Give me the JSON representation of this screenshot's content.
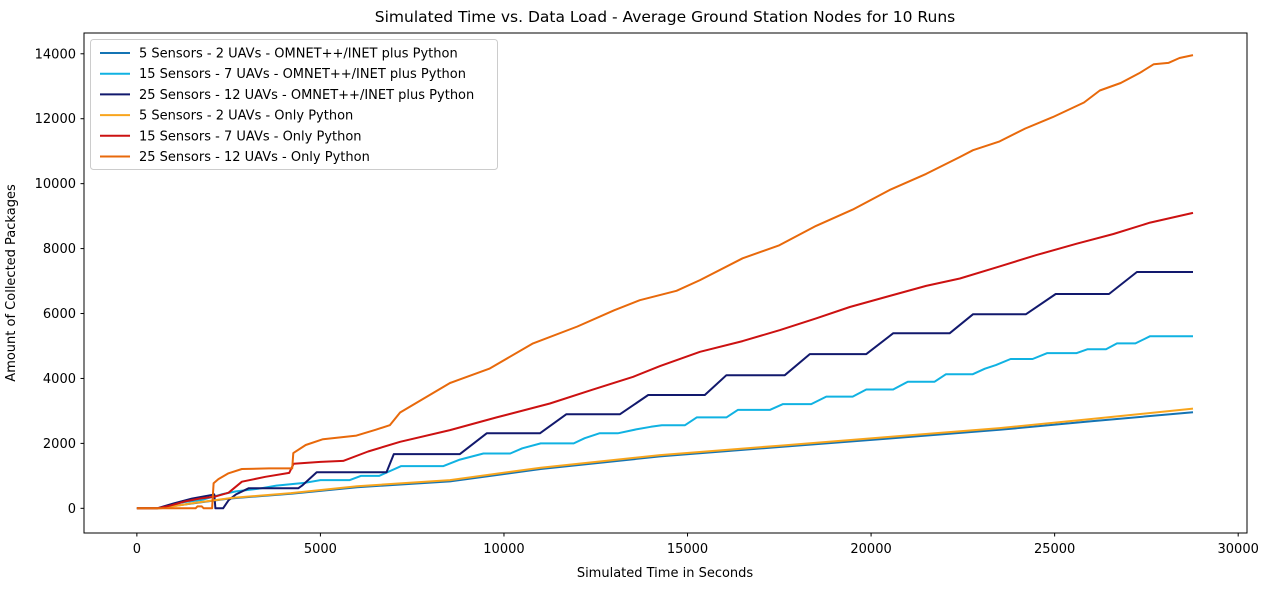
{
  "figure": {
    "title": "Simulated Time vs. Data Load - Average Ground Station Nodes for 10 Runs",
    "xlabel": "Simulated Time in Seconds",
    "ylabel": "Amount of Collected Packages"
  },
  "chart_data": {
    "type": "line",
    "title": "Simulated Time vs. Data Load - Average Ground Station Nodes for 10 Runs",
    "xlabel": "Simulated Time in Seconds",
    "ylabel": "Amount of Collected Packages",
    "grid": false,
    "legend_position": "upper left",
    "xlim": [
      -1440,
      30240
    ],
    "ylim": [
      -760,
      14640
    ],
    "x_ticks": [
      0,
      5000,
      10000,
      15000,
      20000,
      25000,
      30000
    ],
    "y_ticks": [
      0,
      2000,
      4000,
      6000,
      8000,
      10000,
      12000,
      14000
    ],
    "series": [
      {
        "name": "5 Sensors - 2 UAVs - OMNET++/INET plus Python",
        "color": "#1474b4",
        "points": [
          [
            0,
            0
          ],
          [
            550,
            0
          ],
          [
            1500,
            150
          ],
          [
            2500,
            300
          ],
          [
            4200,
            450
          ],
          [
            6000,
            650
          ],
          [
            8530,
            830
          ],
          [
            11000,
            1210
          ],
          [
            14250,
            1600
          ],
          [
            17500,
            1890
          ],
          [
            20500,
            2150
          ],
          [
            23500,
            2420
          ],
          [
            26000,
            2680
          ],
          [
            28770,
            2960
          ]
        ]
      },
      {
        "name": "15 Sensors - 7 UAVs - OMNET++/INET plus Python",
        "color": "#10b2e2",
        "points": [
          [
            0,
            0
          ],
          [
            600,
            0
          ],
          [
            1200,
            180
          ],
          [
            1770,
            260
          ],
          [
            2300,
            430
          ],
          [
            2700,
            520
          ],
          [
            3300,
            600
          ],
          [
            3800,
            700
          ],
          [
            4600,
            790
          ],
          [
            5000,
            870
          ],
          [
            5800,
            870
          ],
          [
            6100,
            1000
          ],
          [
            6600,
            1000
          ],
          [
            6800,
            1100
          ],
          [
            7200,
            1300
          ],
          [
            8350,
            1300
          ],
          [
            8800,
            1500
          ],
          [
            9440,
            1690
          ],
          [
            10170,
            1690
          ],
          [
            10500,
            1850
          ],
          [
            11000,
            2000
          ],
          [
            11900,
            2000
          ],
          [
            12200,
            2160
          ],
          [
            12600,
            2310
          ],
          [
            13100,
            2310
          ],
          [
            13600,
            2430
          ],
          [
            14000,
            2510
          ],
          [
            14300,
            2560
          ],
          [
            14930,
            2560
          ],
          [
            15250,
            2800
          ],
          [
            16060,
            2800
          ],
          [
            16370,
            3030
          ],
          [
            17240,
            3030
          ],
          [
            17600,
            3210
          ],
          [
            18370,
            3210
          ],
          [
            18780,
            3440
          ],
          [
            19500,
            3440
          ],
          [
            19870,
            3660
          ],
          [
            20600,
            3660
          ],
          [
            21000,
            3900
          ],
          [
            21730,
            3900
          ],
          [
            22040,
            4130
          ],
          [
            22770,
            4130
          ],
          [
            23100,
            4300
          ],
          [
            23400,
            4410
          ],
          [
            23800,
            4600
          ],
          [
            24400,
            4600
          ],
          [
            24800,
            4780
          ],
          [
            25600,
            4780
          ],
          [
            25900,
            4900
          ],
          [
            26400,
            4900
          ],
          [
            26700,
            5080
          ],
          [
            27200,
            5080
          ],
          [
            27600,
            5300
          ],
          [
            28770,
            5300
          ]
        ]
      },
      {
        "name": "25 Sensors - 12 UAVs - OMNET++/INET plus Python",
        "color": "#12196d",
        "points": [
          [
            0,
            0
          ],
          [
            550,
            0
          ],
          [
            1000,
            150
          ],
          [
            1500,
            300
          ],
          [
            2080,
            420
          ],
          [
            2110,
            430
          ],
          [
            2140,
            0
          ],
          [
            2350,
            0
          ],
          [
            2500,
            250
          ],
          [
            2700,
            430
          ],
          [
            3050,
            620
          ],
          [
            4400,
            620
          ],
          [
            4500,
            700
          ],
          [
            4900,
            1110
          ],
          [
            6800,
            1110
          ],
          [
            7000,
            1670
          ],
          [
            8800,
            1670
          ],
          [
            9530,
            2310
          ],
          [
            10980,
            2310
          ],
          [
            11700,
            2900
          ],
          [
            13160,
            2900
          ],
          [
            13930,
            3490
          ],
          [
            15470,
            3490
          ],
          [
            16060,
            4100
          ],
          [
            17650,
            4100
          ],
          [
            18330,
            4750
          ],
          [
            19870,
            4750
          ],
          [
            20600,
            5390
          ],
          [
            22140,
            5390
          ],
          [
            22780,
            5980
          ],
          [
            24220,
            5980
          ],
          [
            25030,
            6600
          ],
          [
            26480,
            6600
          ],
          [
            27240,
            7280
          ],
          [
            28770,
            7280
          ]
        ]
      },
      {
        "name": "5 Sensors - 2 UAVs - Only Python",
        "color": "#f8a51d",
        "points": [
          [
            0,
            0
          ],
          [
            650,
            0
          ],
          [
            1600,
            170
          ],
          [
            2600,
            320
          ],
          [
            4200,
            470
          ],
          [
            6000,
            680
          ],
          [
            8530,
            870
          ],
          [
            11000,
            1250
          ],
          [
            14250,
            1640
          ],
          [
            17500,
            1930
          ],
          [
            20500,
            2200
          ],
          [
            23500,
            2470
          ],
          [
            26000,
            2750
          ],
          [
            28770,
            3070
          ]
        ]
      },
      {
        "name": "15 Sensors - 7 UAVs - Only Python",
        "color": "#cc1111",
        "points": [
          [
            0,
            0
          ],
          [
            550,
            0
          ],
          [
            900,
            80
          ],
          [
            1300,
            210
          ],
          [
            1700,
            300
          ],
          [
            2130,
            360
          ],
          [
            2500,
            480
          ],
          [
            2860,
            820
          ],
          [
            3500,
            970
          ],
          [
            4150,
            1090
          ],
          [
            4270,
            1370
          ],
          [
            5000,
            1430
          ],
          [
            5620,
            1460
          ],
          [
            6300,
            1750
          ],
          [
            7170,
            2050
          ],
          [
            8530,
            2410
          ],
          [
            9800,
            2800
          ],
          [
            11250,
            3230
          ],
          [
            12400,
            3650
          ],
          [
            13520,
            4050
          ],
          [
            14250,
            4380
          ],
          [
            15340,
            4820
          ],
          [
            16500,
            5150
          ],
          [
            17520,
            5490
          ],
          [
            18500,
            5850
          ],
          [
            19420,
            6200
          ],
          [
            20500,
            6540
          ],
          [
            21500,
            6850
          ],
          [
            22420,
            7080
          ],
          [
            23500,
            7450
          ],
          [
            24500,
            7800
          ],
          [
            25600,
            8150
          ],
          [
            26600,
            8450
          ],
          [
            27600,
            8800
          ],
          [
            28770,
            9100
          ]
        ]
      },
      {
        "name": "25 Sensors - 12 UAVs - Only Python",
        "color": "#e8690b",
        "points": [
          [
            0,
            0
          ],
          [
            1600,
            0
          ],
          [
            1650,
            60
          ],
          [
            1770,
            60
          ],
          [
            1820,
            0
          ],
          [
            2050,
            0
          ],
          [
            2090,
            770
          ],
          [
            2222,
            900
          ],
          [
            2495,
            1080
          ],
          [
            2860,
            1210
          ],
          [
            3600,
            1230
          ],
          [
            4230,
            1230
          ],
          [
            4260,
            1700
          ],
          [
            4600,
            1950
          ],
          [
            5070,
            2130
          ],
          [
            5980,
            2240
          ],
          [
            6500,
            2420
          ],
          [
            6890,
            2560
          ],
          [
            7170,
            2950
          ],
          [
            8530,
            3860
          ],
          [
            9600,
            4300
          ],
          [
            10790,
            5080
          ],
          [
            12000,
            5600
          ],
          [
            13000,
            6100
          ],
          [
            13700,
            6410
          ],
          [
            14700,
            6700
          ],
          [
            15340,
            7030
          ],
          [
            16500,
            7700
          ],
          [
            17500,
            8100
          ],
          [
            18500,
            8700
          ],
          [
            19500,
            9200
          ],
          [
            20500,
            9800
          ],
          [
            21500,
            10300
          ],
          [
            22420,
            10820
          ],
          [
            22775,
            11030
          ],
          [
            23500,
            11300
          ],
          [
            24200,
            11700
          ],
          [
            24950,
            12050
          ],
          [
            25800,
            12500
          ],
          [
            26230,
            12870
          ],
          [
            26800,
            13100
          ],
          [
            27300,
            13400
          ],
          [
            27700,
            13680
          ],
          [
            28100,
            13720
          ],
          [
            28400,
            13870
          ],
          [
            28770,
            13960
          ]
        ]
      }
    ]
  }
}
